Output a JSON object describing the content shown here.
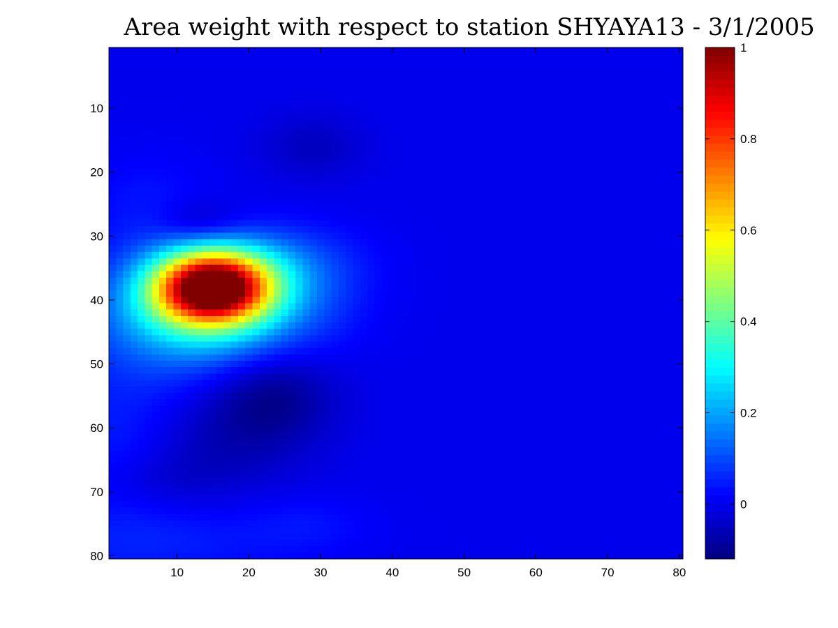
{
  "chart_data": {
    "type": "heatmap",
    "title": "Area weight with respect to station SHYAYA13 - 3/1/2005",
    "xlabel": "",
    "ylabel": "",
    "xlim": [
      0.5,
      80.5
    ],
    "ylim": [
      80.5,
      0.5
    ],
    "y_reversed": true,
    "xticks": [
      10,
      20,
      30,
      40,
      50,
      60,
      70,
      80
    ],
    "yticks": [
      10,
      20,
      30,
      40,
      50,
      60,
      70,
      80
    ],
    "grid_size": {
      "cols": 80,
      "rows": 80
    },
    "colormap": "jet",
    "colorbar": {
      "range": [
        -0.12,
        1
      ],
      "ticks": [
        0,
        0.2,
        0.4,
        0.6,
        0.8,
        1
      ],
      "tick_labels": [
        "0",
        "0.2",
        "0.4",
        "0.6",
        "0.8",
        "1"
      ],
      "placement": "right"
    },
    "background_value": 0,
    "features": [
      {
        "x": 15,
        "y": 38,
        "value": 1.0,
        "sx": 5.5,
        "sy": 3.8
      },
      {
        "x": 13,
        "y": 42,
        "value": 0.3,
        "sx": 9,
        "sy": 6
      },
      {
        "x": 23,
        "y": 34,
        "value": 0.1,
        "sx": 8,
        "sy": 4
      },
      {
        "x": 28,
        "y": 40,
        "value": 0.05,
        "sx": 6,
        "sy": 5
      },
      {
        "x": 2,
        "y": 60,
        "value": 0.05,
        "sx": 6,
        "sy": 9
      },
      {
        "x": 6,
        "y": 78,
        "value": 0.05,
        "sx": 14,
        "sy": 4
      },
      {
        "x": 28,
        "y": 75,
        "value": 0.03,
        "sx": 6,
        "sy": 3
      },
      {
        "x": 6,
        "y": 26,
        "value": 0.04,
        "sx": 6,
        "sy": 6
      },
      {
        "x": 23,
        "y": 55,
        "value": -0.11,
        "sx": 6,
        "sy": 5
      },
      {
        "x": 16,
        "y": 63,
        "value": -0.05,
        "sx": 8,
        "sy": 5
      },
      {
        "x": 13,
        "y": 28,
        "value": -0.07,
        "sx": 4,
        "sy": 2.5
      },
      {
        "x": 29,
        "y": 16,
        "value": -0.05,
        "sx": 5,
        "sy": 3.5
      },
      {
        "x": 8,
        "y": 68,
        "value": -0.03,
        "sx": 6,
        "sy": 3
      }
    ]
  }
}
